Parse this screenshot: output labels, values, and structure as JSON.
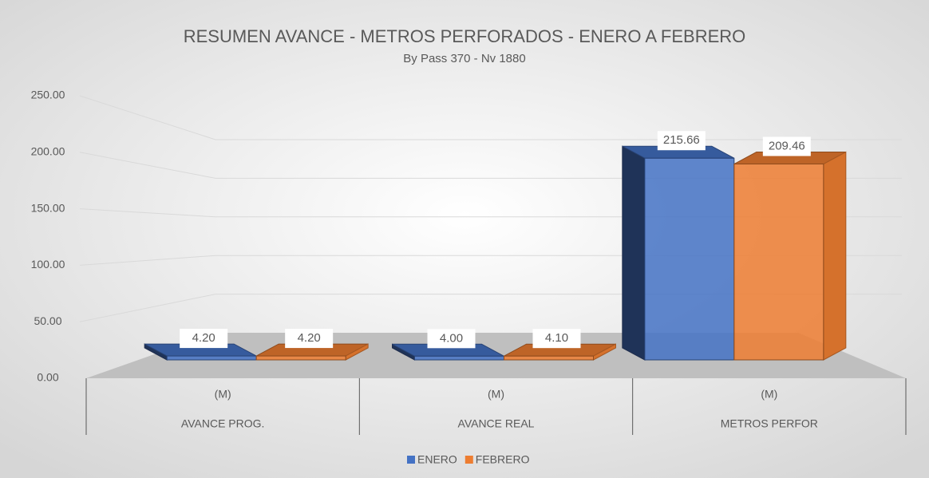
{
  "chart_data": {
    "type": "bar3d",
    "title": "RESUMEN AVANCE - METROS PERFORADOS - ENERO A FEBRERO",
    "subtitle": "By Pass 370 - Nv 1880",
    "subcategories": [
      "(M)",
      "(M)",
      "(M)"
    ],
    "categories": [
      "AVANCE PROG.",
      "AVANCE REAL",
      "METROS PERFOR"
    ],
    "series": [
      {
        "name": "ENERO",
        "color": "#4472c4",
        "values": [
          4.2,
          4.0,
          215.66
        ],
        "value_labels": [
          "4.20",
          "4.00",
          "215.66"
        ]
      },
      {
        "name": "FEBRERO",
        "color": "#ed7d31",
        "values": [
          4.2,
          4.1,
          209.46
        ],
        "value_labels": [
          "4.20",
          "4.10",
          "209.46"
        ]
      }
    ],
    "ylim": [
      0,
      250
    ],
    "yticks": [
      {
        "value": 0,
        "label": "0.00"
      },
      {
        "value": 50,
        "label": "50.00"
      },
      {
        "value": 100,
        "label": "100.00"
      },
      {
        "value": 150,
        "label": "150.00"
      },
      {
        "value": 200,
        "label": "200.00"
      },
      {
        "value": 250,
        "label": "250.00"
      }
    ],
    "grid": true,
    "legend": "bottom"
  }
}
